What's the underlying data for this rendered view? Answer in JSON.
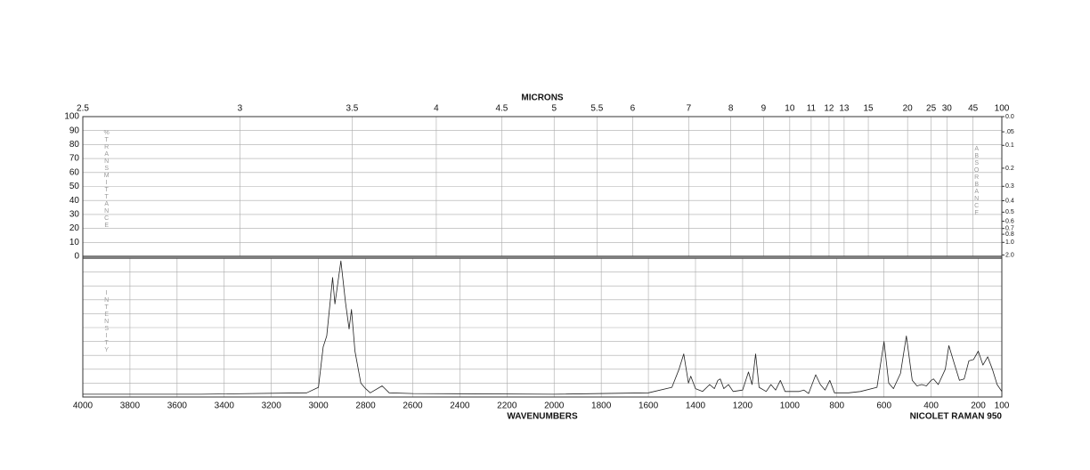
{
  "chart_data": {
    "type": "line",
    "title": "MICRONS",
    "xlabel": "WAVENUMBERS",
    "instrument": "NICOLET RAMAN 950",
    "ylabel": "%TRANSMITTANCE",
    "intensity_label": "INTENSITY",
    "y2label": "ABSORBANCE",
    "xlim": [
      4000,
      100
    ],
    "xticks": [
      4000,
      3800,
      3600,
      3400,
      3200,
      3000,
      2800,
      2600,
      2400,
      2200,
      2000,
      1800,
      1600,
      1400,
      1200,
      1000,
      800,
      600,
      400,
      200,
      100
    ],
    "x2ticks": [
      2.5,
      3,
      3.5,
      4,
      4.5,
      5,
      5.5,
      6,
      7,
      8,
      9,
      10,
      11,
      12,
      13,
      15,
      20,
      25,
      30,
      45,
      100
    ],
    "ylim": [
      0,
      100
    ],
    "yticks": [
      0,
      10,
      20,
      30,
      40,
      50,
      60,
      70,
      80,
      90,
      100
    ],
    "y2ticks": [
      {
        "value": 0,
        "label": "0.0"
      },
      {
        "value": 0.05,
        "label": ".05"
      },
      0.1,
      0.2,
      0.3,
      0.4,
      0.5,
      0.6,
      0.7,
      0.8,
      {
        "value": 1,
        "label": "1.0"
      },
      {
        "value": 2,
        "label": "2.0"
      }
    ],
    "intensity_lim": [
      0,
      100
    ],
    "x": [
      4000,
      3500,
      3050,
      3000,
      2980,
      2965,
      2940,
      2930,
      2905,
      2885,
      2870,
      2860,
      2845,
      2820,
      2800,
      2780,
      2730,
      2700,
      2600,
      2000,
      1600,
      1500,
      1470,
      1450,
      1430,
      1420,
      1400,
      1370,
      1340,
      1320,
      1305,
      1295,
      1280,
      1260,
      1240,
      1200,
      1175,
      1160,
      1145,
      1130,
      1100,
      1080,
      1060,
      1040,
      1020,
      960,
      940,
      920,
      890,
      870,
      850,
      830,
      810,
      750,
      700,
      630,
      600,
      580,
      560,
      530,
      505,
      480,
      460,
      440,
      420,
      400,
      390,
      370,
      340,
      325,
      300,
      280,
      260,
      240,
      220,
      200,
      180,
      160,
      140,
      120,
      100
    ],
    "series": [
      {
        "name": "INTENSITY",
        "color": "#222222",
        "values": [
          2,
          2,
          3,
          7,
          36,
          44,
          86,
          67,
          98,
          68,
          49,
          63,
          33,
          10,
          6,
          3,
          8,
          3,
          2.5,
          2,
          3,
          7,
          20,
          31,
          10,
          15,
          6,
          4,
          9,
          6,
          12,
          13,
          6,
          9,
          4,
          5,
          18,
          9,
          31,
          7,
          4,
          9,
          5,
          12,
          4,
          4,
          5,
          2.5,
          16,
          9,
          5,
          12,
          3,
          3,
          4,
          7,
          40,
          10,
          6,
          17,
          44,
          12,
          8,
          9,
          8,
          12,
          13,
          9,
          20,
          37,
          23,
          12,
          13,
          26,
          27,
          33,
          23,
          29,
          20,
          9,
          4
        ]
      }
    ]
  }
}
